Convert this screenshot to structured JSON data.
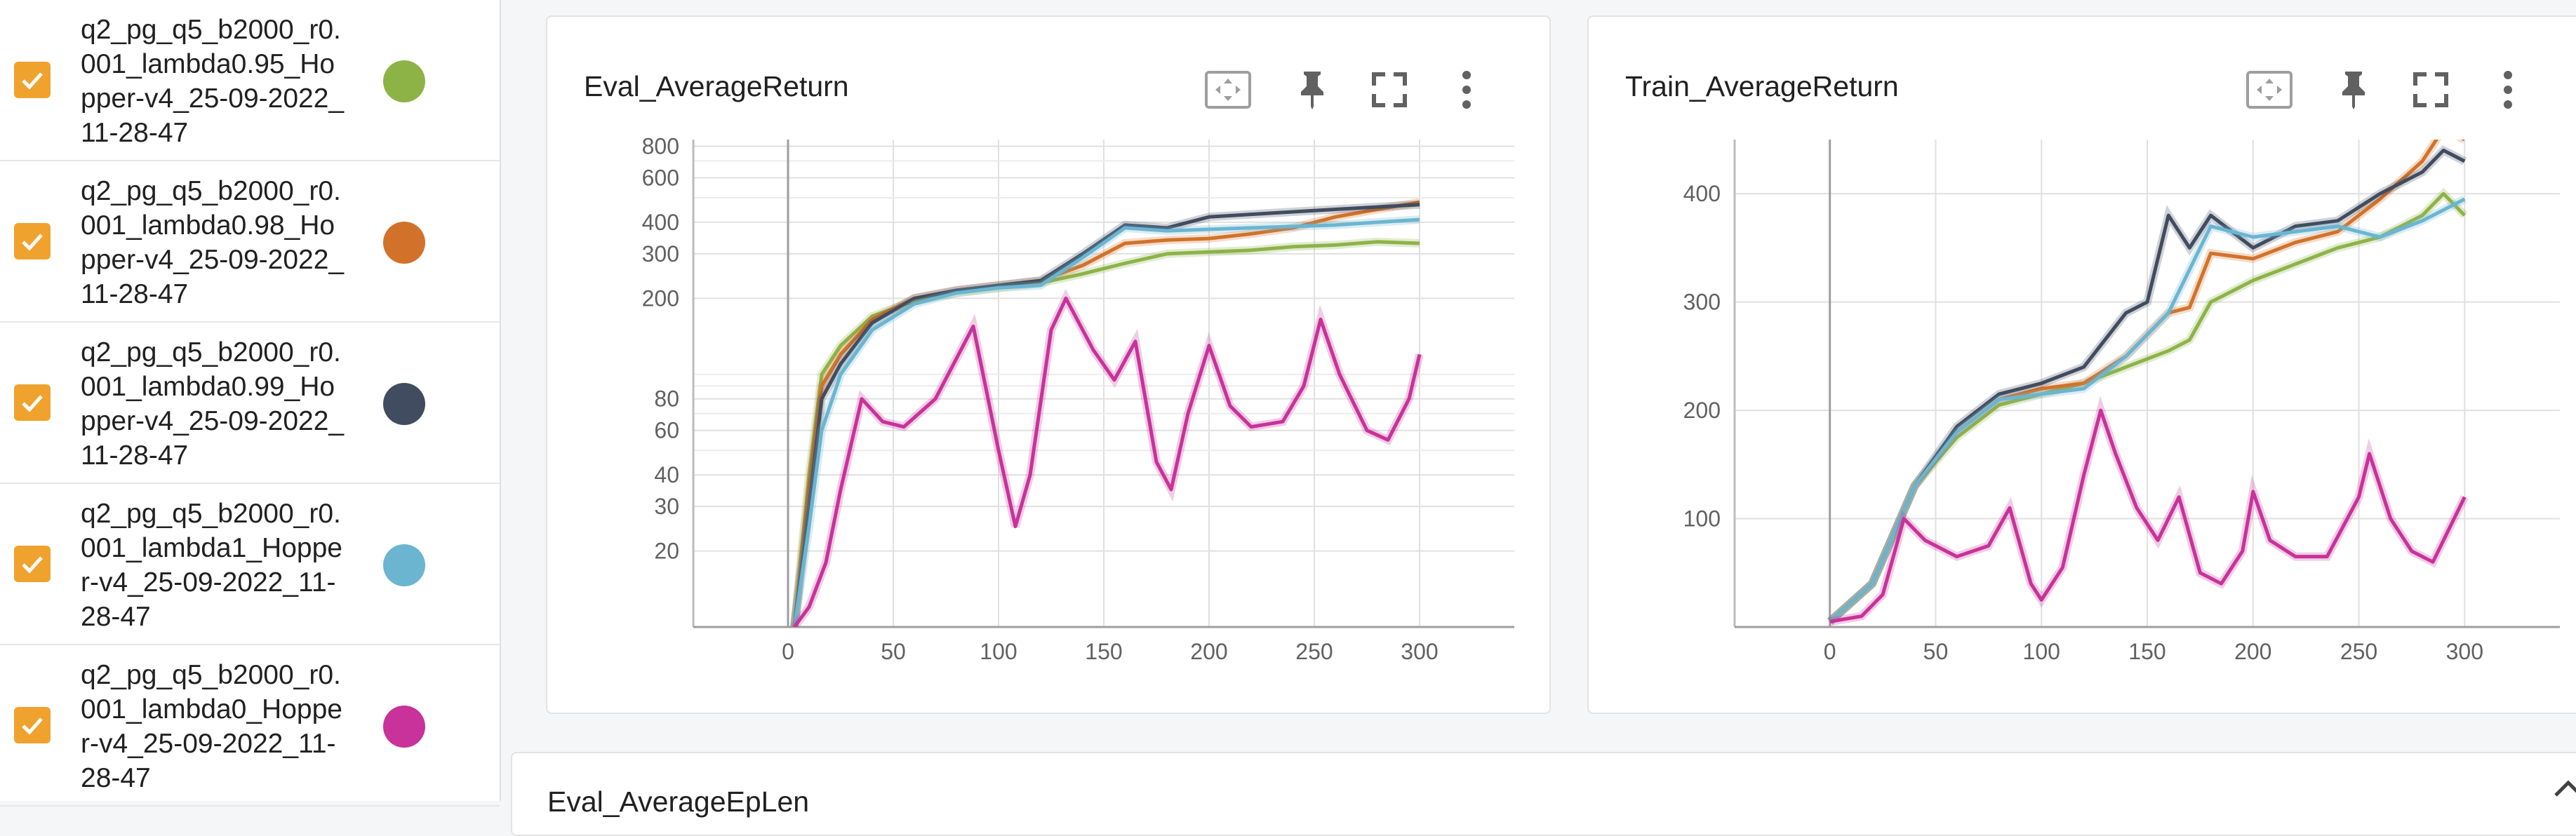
{
  "runs": [
    {
      "name": "q2_pg_q5_b2000_r0.001_lambda0.95_Hopper-v4_25-09-2022_11-28-47",
      "color": "#8db347",
      "checked": true
    },
    {
      "name": "q2_pg_q5_b2000_r0.001_lambda0.98_Hopper-v4_25-09-2022_11-28-47",
      "color": "#d2722a",
      "checked": true
    },
    {
      "name": "q2_pg_q5_b2000_r0.001_lambda0.99_Hopper-v4_25-09-2022_11-28-47",
      "color": "#414c60",
      "checked": true
    },
    {
      "name": "q2_pg_q5_b2000_r0.001_lambda1_Hopper-v4_25-09-2022_11-28-47",
      "color": "#6bb5d1",
      "checked": true
    },
    {
      "name": "q2_pg_q5_b2000_r0.001_lambda0_Hopper-v4_25-09-2022_11-28-47",
      "color": "#c8329a",
      "checked": true
    }
  ],
  "cards": {
    "eval": {
      "title": "Eval_AverageReturn"
    },
    "train": {
      "title": "Train_AverageReturn"
    },
    "eplen": {
      "title": "Eval_AverageEpLen"
    }
  },
  "icons": {
    "fit": "fit-domain-icon",
    "pin": "pin-icon",
    "fullscreen": "fullscreen-icon",
    "more": "more-vert-icon",
    "collapse": "chevron-up-icon",
    "checkbox": "check-icon"
  },
  "chart_data": [
    {
      "type": "line",
      "title": "Eval_AverageReturn",
      "yscale": "log",
      "xlim": [
        -45,
        345
      ],
      "ylim": [
        10,
        850
      ],
      "x_ticks": [
        "0",
        "50",
        "100",
        "150",
        "200",
        "250",
        "300"
      ],
      "y_ticks": [
        "20",
        "30",
        "40",
        "60",
        "80",
        "200",
        "300",
        "400",
        "600",
        "800"
      ],
      "series": [
        {
          "color": "#8db347",
          "points": [
            [
              3,
              10
            ],
            [
              10,
              40
            ],
            [
              16,
              100
            ],
            [
              25,
              130
            ],
            [
              40,
              170
            ],
            [
              60,
              195
            ],
            [
              80,
              210
            ],
            [
              100,
              220
            ],
            [
              120,
              230
            ],
            [
              140,
              250
            ],
            [
              160,
              275
            ],
            [
              180,
              300
            ],
            [
              200,
              305
            ],
            [
              220,
              310
            ],
            [
              240,
              320
            ],
            [
              260,
              325
            ],
            [
              280,
              335
            ],
            [
              300,
              330
            ]
          ]
        },
        {
          "color": "#d2722a",
          "points": [
            [
              3,
              10
            ],
            [
              10,
              35
            ],
            [
              16,
              90
            ],
            [
              25,
              120
            ],
            [
              40,
              165
            ],
            [
              60,
              200
            ],
            [
              80,
              215
            ],
            [
              100,
              225
            ],
            [
              120,
              235
            ],
            [
              140,
              270
            ],
            [
              160,
              330
            ],
            [
              180,
              340
            ],
            [
              200,
              345
            ],
            [
              220,
              360
            ],
            [
              240,
              380
            ],
            [
              260,
              420
            ],
            [
              280,
              450
            ],
            [
              300,
              480
            ]
          ]
        },
        {
          "color": "#414c60",
          "points": [
            [
              3,
              10
            ],
            [
              10,
              30
            ],
            [
              16,
              80
            ],
            [
              25,
              110
            ],
            [
              40,
              160
            ],
            [
              60,
              200
            ],
            [
              80,
              215
            ],
            [
              100,
              225
            ],
            [
              120,
              235
            ],
            [
              140,
              300
            ],
            [
              160,
              390
            ],
            [
              180,
              380
            ],
            [
              200,
              420
            ],
            [
              220,
              430
            ],
            [
              240,
              440
            ],
            [
              260,
              450
            ],
            [
              280,
              460
            ],
            [
              300,
              470
            ]
          ]
        },
        {
          "color": "#6bb5d1",
          "points": [
            [
              3,
              10
            ],
            [
              10,
              25
            ],
            [
              16,
              60
            ],
            [
              25,
              100
            ],
            [
              40,
              150
            ],
            [
              60,
              190
            ],
            [
              80,
              210
            ],
            [
              100,
              220
            ],
            [
              120,
              225
            ],
            [
              140,
              290
            ],
            [
              160,
              380
            ],
            [
              180,
              370
            ],
            [
              200,
              375
            ],
            [
              220,
              380
            ],
            [
              240,
              385
            ],
            [
              260,
              390
            ],
            [
              280,
              400
            ],
            [
              300,
              410
            ]
          ]
        },
        {
          "color": "#c8329a",
          "points": [
            [
              3,
              10
            ],
            [
              10,
              12
            ],
            [
              18,
              18
            ],
            [
              25,
              35
            ],
            [
              35,
              80
            ],
            [
              45,
              65
            ],
            [
              55,
              62
            ],
            [
              70,
              80
            ],
            [
              88,
              155
            ],
            [
              100,
              50
            ],
            [
              108,
              25
            ],
            [
              115,
              40
            ],
            [
              125,
              150
            ],
            [
              132,
              200
            ],
            [
              145,
              125
            ],
            [
              155,
              95
            ],
            [
              165,
              135
            ],
            [
              175,
              45
            ],
            [
              182,
              35
            ],
            [
              190,
              70
            ],
            [
              200,
              130
            ],
            [
              210,
              75
            ],
            [
              220,
              62
            ],
            [
              235,
              65
            ],
            [
              245,
              90
            ],
            [
              253,
              165
            ],
            [
              262,
              100
            ],
            [
              275,
              60
            ],
            [
              285,
              55
            ],
            [
              295,
              80
            ],
            [
              300,
              120
            ]
          ]
        }
      ]
    },
    {
      "type": "line",
      "title": "Train_AverageReturn",
      "xlim": [
        -45,
        345
      ],
      "ylim": [
        0,
        450
      ],
      "x_ticks": [
        "0",
        "50",
        "100",
        "150",
        "200",
        "250",
        "300"
      ],
      "y_ticks": [
        "100",
        "200",
        "300",
        "400"
      ],
      "series": [
        {
          "color": "#8db347",
          "points": [
            [
              0,
              5
            ],
            [
              20,
              40
            ],
            [
              40,
              130
            ],
            [
              60,
              175
            ],
            [
              80,
              205
            ],
            [
              100,
              215
            ],
            [
              120,
              225
            ],
            [
              140,
              240
            ],
            [
              160,
              255
            ],
            [
              170,
              265
            ],
            [
              180,
              300
            ],
            [
              200,
              320
            ],
            [
              220,
              335
            ],
            [
              240,
              350
            ],
            [
              260,
              360
            ],
            [
              280,
              380
            ],
            [
              290,
              400
            ],
            [
              300,
              380
            ]
          ]
        },
        {
          "color": "#d2722a",
          "points": [
            [
              0,
              5
            ],
            [
              20,
              40
            ],
            [
              40,
              130
            ],
            [
              60,
              180
            ],
            [
              80,
              210
            ],
            [
              100,
              220
            ],
            [
              120,
              225
            ],
            [
              140,
              250
            ],
            [
              160,
              290
            ],
            [
              170,
              295
            ],
            [
              180,
              345
            ],
            [
              200,
              340
            ],
            [
              220,
              355
            ],
            [
              240,
              365
            ],
            [
              260,
              395
            ],
            [
              280,
              430
            ],
            [
              290,
              460
            ],
            [
              300,
              450
            ]
          ]
        },
        {
          "color": "#414c60",
          "points": [
            [
              0,
              5
            ],
            [
              20,
              40
            ],
            [
              40,
              130
            ],
            [
              60,
              185
            ],
            [
              80,
              215
            ],
            [
              100,
              225
            ],
            [
              120,
              240
            ],
            [
              140,
              290
            ],
            [
              150,
              300
            ],
            [
              160,
              380
            ],
            [
              170,
              350
            ],
            [
              180,
              380
            ],
            [
              200,
              350
            ],
            [
              220,
              370
            ],
            [
              240,
              375
            ],
            [
              260,
              400
            ],
            [
              280,
              420
            ],
            [
              290,
              440
            ],
            [
              300,
              430
            ]
          ]
        },
        {
          "color": "#6bb5d1",
          "points": [
            [
              0,
              5
            ],
            [
              20,
              40
            ],
            [
              40,
              130
            ],
            [
              60,
              180
            ],
            [
              80,
              210
            ],
            [
              100,
              215
            ],
            [
              120,
              220
            ],
            [
              140,
              250
            ],
            [
              160,
              290
            ],
            [
              170,
              330
            ],
            [
              180,
              370
            ],
            [
              200,
              360
            ],
            [
              220,
              365
            ],
            [
              240,
              370
            ],
            [
              260,
              360
            ],
            [
              280,
              375
            ],
            [
              300,
              395
            ]
          ]
        },
        {
          "color": "#c8329a",
          "points": [
            [
              0,
              5
            ],
            [
              15,
              10
            ],
            [
              25,
              30
            ],
            [
              35,
              100
            ],
            [
              45,
              80
            ],
            [
              60,
              65
            ],
            [
              75,
              75
            ],
            [
              85,
              110
            ],
            [
              95,
              40
            ],
            [
              100,
              25
            ],
            [
              110,
              55
            ],
            [
              120,
              140
            ],
            [
              128,
              200
            ],
            [
              135,
              160
            ],
            [
              145,
              110
            ],
            [
              155,
              80
            ],
            [
              165,
              120
            ],
            [
              175,
              50
            ],
            [
              185,
              40
            ],
            [
              195,
              70
            ],
            [
              200,
              125
            ],
            [
              208,
              80
            ],
            [
              220,
              65
            ],
            [
              235,
              65
            ],
            [
              250,
              120
            ],
            [
              255,
              160
            ],
            [
              265,
              100
            ],
            [
              275,
              70
            ],
            [
              285,
              60
            ],
            [
              300,
              120
            ]
          ]
        }
      ]
    }
  ]
}
